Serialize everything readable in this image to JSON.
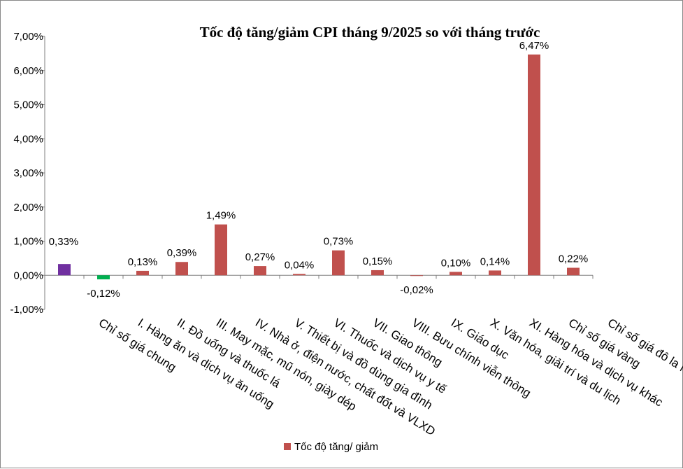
{
  "chart_data": {
    "type": "bar",
    "title": "Tốc độ tăng/giảm CPI tháng 9/2025 so với tháng trước",
    "xlabel": "",
    "ylabel": "",
    "ylim": [
      -1,
      7
    ],
    "yticks": [
      "-1,00%",
      "0,00%",
      "1,00%",
      "2,00%",
      "3,00%",
      "4,00%",
      "5,00%",
      "6,00%",
      "7,00%"
    ],
    "ytick_values": [
      -1,
      0,
      1,
      2,
      3,
      4,
      5,
      6,
      7
    ],
    "grid": false,
    "legend": {
      "label": "Tốc độ tăng/ giảm",
      "color": "#c0504d",
      "placement": "bottom"
    },
    "categories": [
      "Chỉ số giá chung",
      "I. Hàng ăn và dịch vụ ăn uống",
      "II. Đồ uống và thuốc lá",
      "III. May mặc, mũ nón, giày dép",
      "IV. Nhà ở, điện nước, chất đốt và VLXD",
      "V. Thiết bị và đồ dùng gia đình",
      "VI. Thuốc và dịch vụ y tế",
      "VII. Giao thông",
      "VIII. Bưu chính viễn thông",
      "IX. Giáo dục",
      "X. Văn hóa, giải trí và du lịch",
      "XI. Hàng hóa và dịch vụ khác",
      "Chỉ số giá vàng",
      "Chỉ số giá đô la Mỹ"
    ],
    "series": [
      {
        "name": "Tốc độ tăng/ giảm",
        "values": [
          0.33,
          -0.12,
          0.13,
          0.39,
          1.49,
          0.27,
          0.04,
          0.73,
          0.15,
          -0.02,
          0.1,
          0.14,
          6.47,
          0.22
        ],
        "labels": [
          "0,33%",
          "-0,12%",
          "0,13%",
          "0,39%",
          "1,49%",
          "0,27%",
          "0,04%",
          "0,73%",
          "0,15%",
          "-0,02%",
          "0,10%",
          "0,14%",
          "6,47%",
          "0,22%"
        ]
      }
    ],
    "colors": {
      "general": "#7030a0",
      "negative": "#00b050",
      "default": "#c0504d"
    },
    "bar_colors": [
      "#7030a0",
      "#00b050",
      "#c0504d",
      "#c0504d",
      "#c0504d",
      "#c0504d",
      "#c0504d",
      "#c0504d",
      "#c0504d",
      "#c0504d",
      "#c0504d",
      "#c0504d",
      "#c0504d",
      "#c0504d"
    ]
  }
}
